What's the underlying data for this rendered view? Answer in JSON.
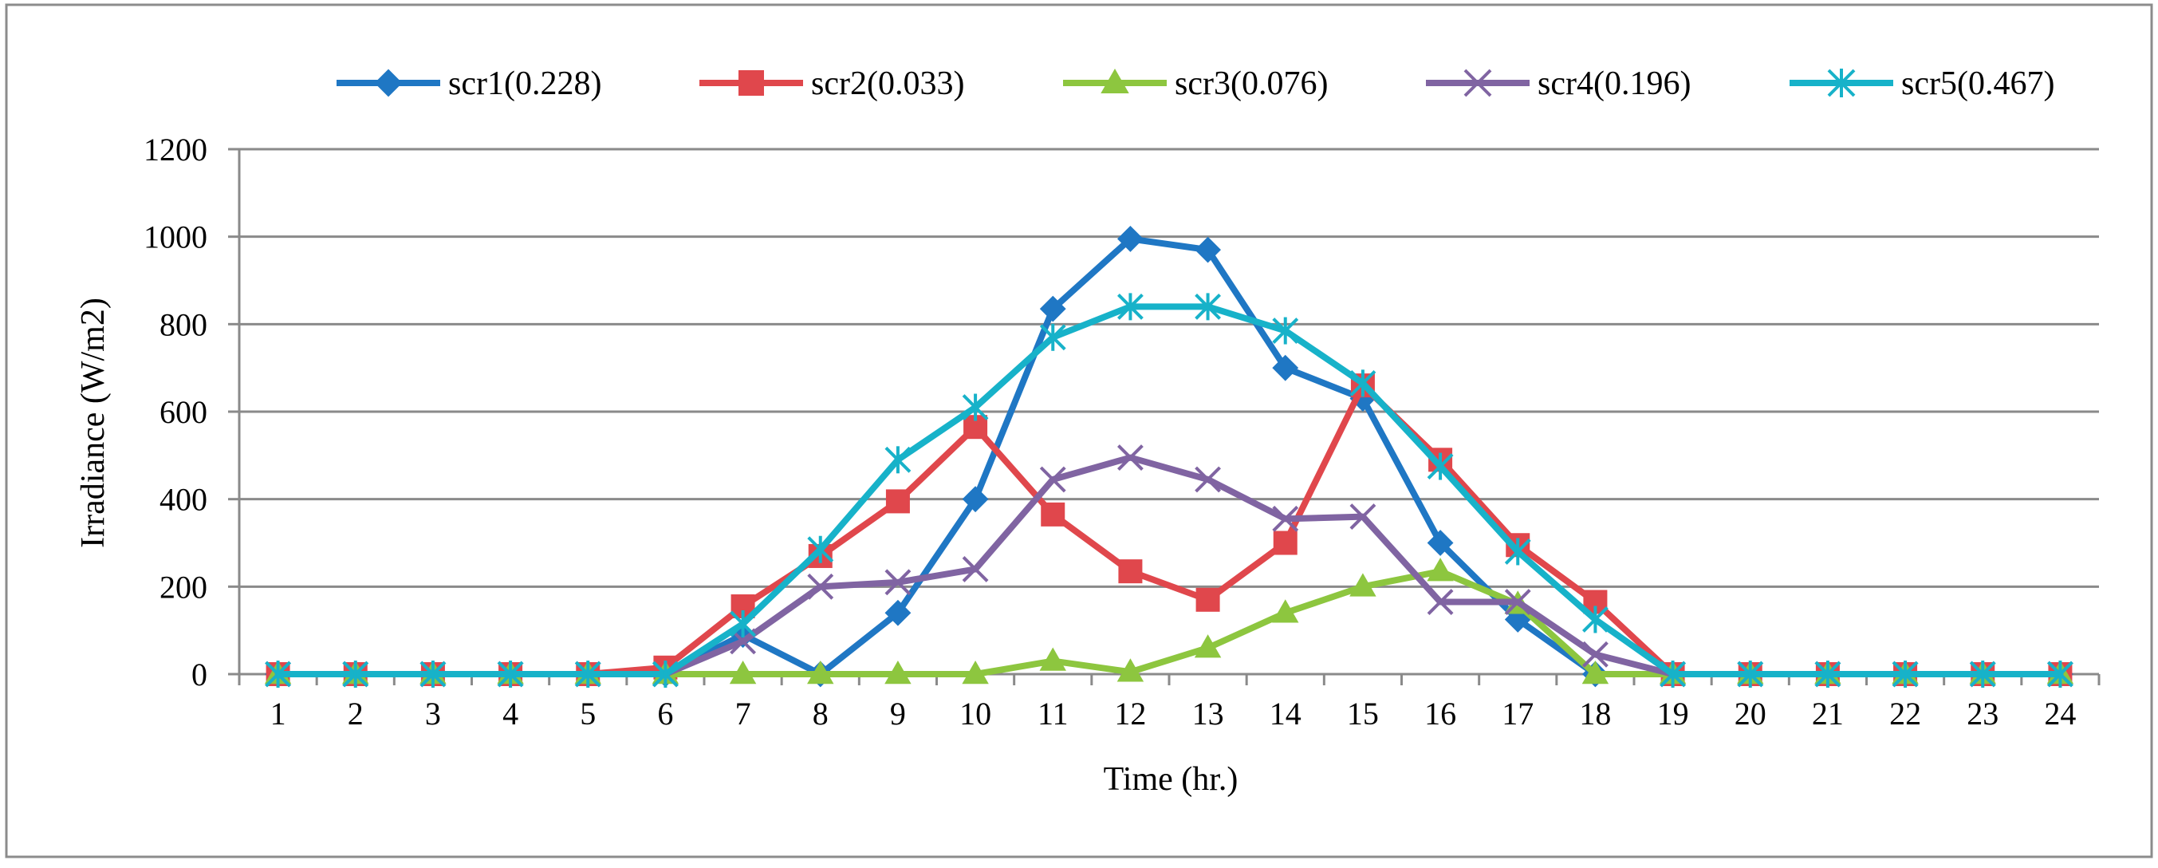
{
  "chart_data": {
    "type": "line",
    "title": "",
    "xlabel": "Time  (hr.)",
    "ylabel": "Irradiance  (W/m2)",
    "ylim": [
      0,
      1200
    ],
    "yticks": [
      0,
      200,
      400,
      600,
      800,
      1000,
      1200
    ],
    "grid": true,
    "legend_position": "top",
    "categories": [
      "1",
      "2",
      "3",
      "4",
      "5",
      "6",
      "7",
      "8",
      "9",
      "10",
      "11",
      "12",
      "13",
      "14",
      "15",
      "16",
      "17",
      "18",
      "19",
      "20",
      "21",
      "22",
      "23",
      "24"
    ],
    "series": [
      {
        "name": "scr1(0.228)",
        "color": "#1f77c4",
        "marker": "diamond",
        "values": [
          0,
          0,
          0,
          0,
          0,
          0,
          90,
          0,
          140,
          400,
          835,
          995,
          970,
          700,
          630,
          300,
          125,
          0,
          0,
          0,
          0,
          0,
          0,
          0
        ]
      },
      {
        "name": "scr2(0.033)",
        "color": "#e0474c",
        "marker": "square",
        "values": [
          0,
          0,
          0,
          0,
          0,
          15,
          155,
          270,
          395,
          565,
          365,
          235,
          170,
          300,
          660,
          490,
          295,
          165,
          0,
          0,
          0,
          0,
          0,
          0
        ]
      },
      {
        "name": "scr3(0.076)",
        "color": "#8dc63f",
        "marker": "triangle",
        "values": [
          0,
          0,
          0,
          0,
          0,
          0,
          0,
          0,
          0,
          0,
          30,
          5,
          60,
          140,
          200,
          235,
          160,
          0,
          0,
          0,
          0,
          0,
          0,
          0
        ]
      },
      {
        "name": "scr4(0.196)",
        "color": "#8064a2",
        "marker": "x",
        "values": [
          0,
          0,
          0,
          0,
          0,
          0,
          75,
          200,
          210,
          240,
          445,
          495,
          445,
          355,
          360,
          165,
          165,
          45,
          0,
          0,
          0,
          0,
          0,
          0
        ]
      },
      {
        "name": "scr5(0.467)",
        "color": "#17b2c9",
        "marker": "asterisk",
        "values": [
          0,
          0,
          0,
          0,
          0,
          0,
          115,
          285,
          490,
          610,
          770,
          840,
          840,
          785,
          665,
          475,
          280,
          125,
          0,
          0,
          0,
          0,
          0,
          0
        ]
      }
    ]
  }
}
